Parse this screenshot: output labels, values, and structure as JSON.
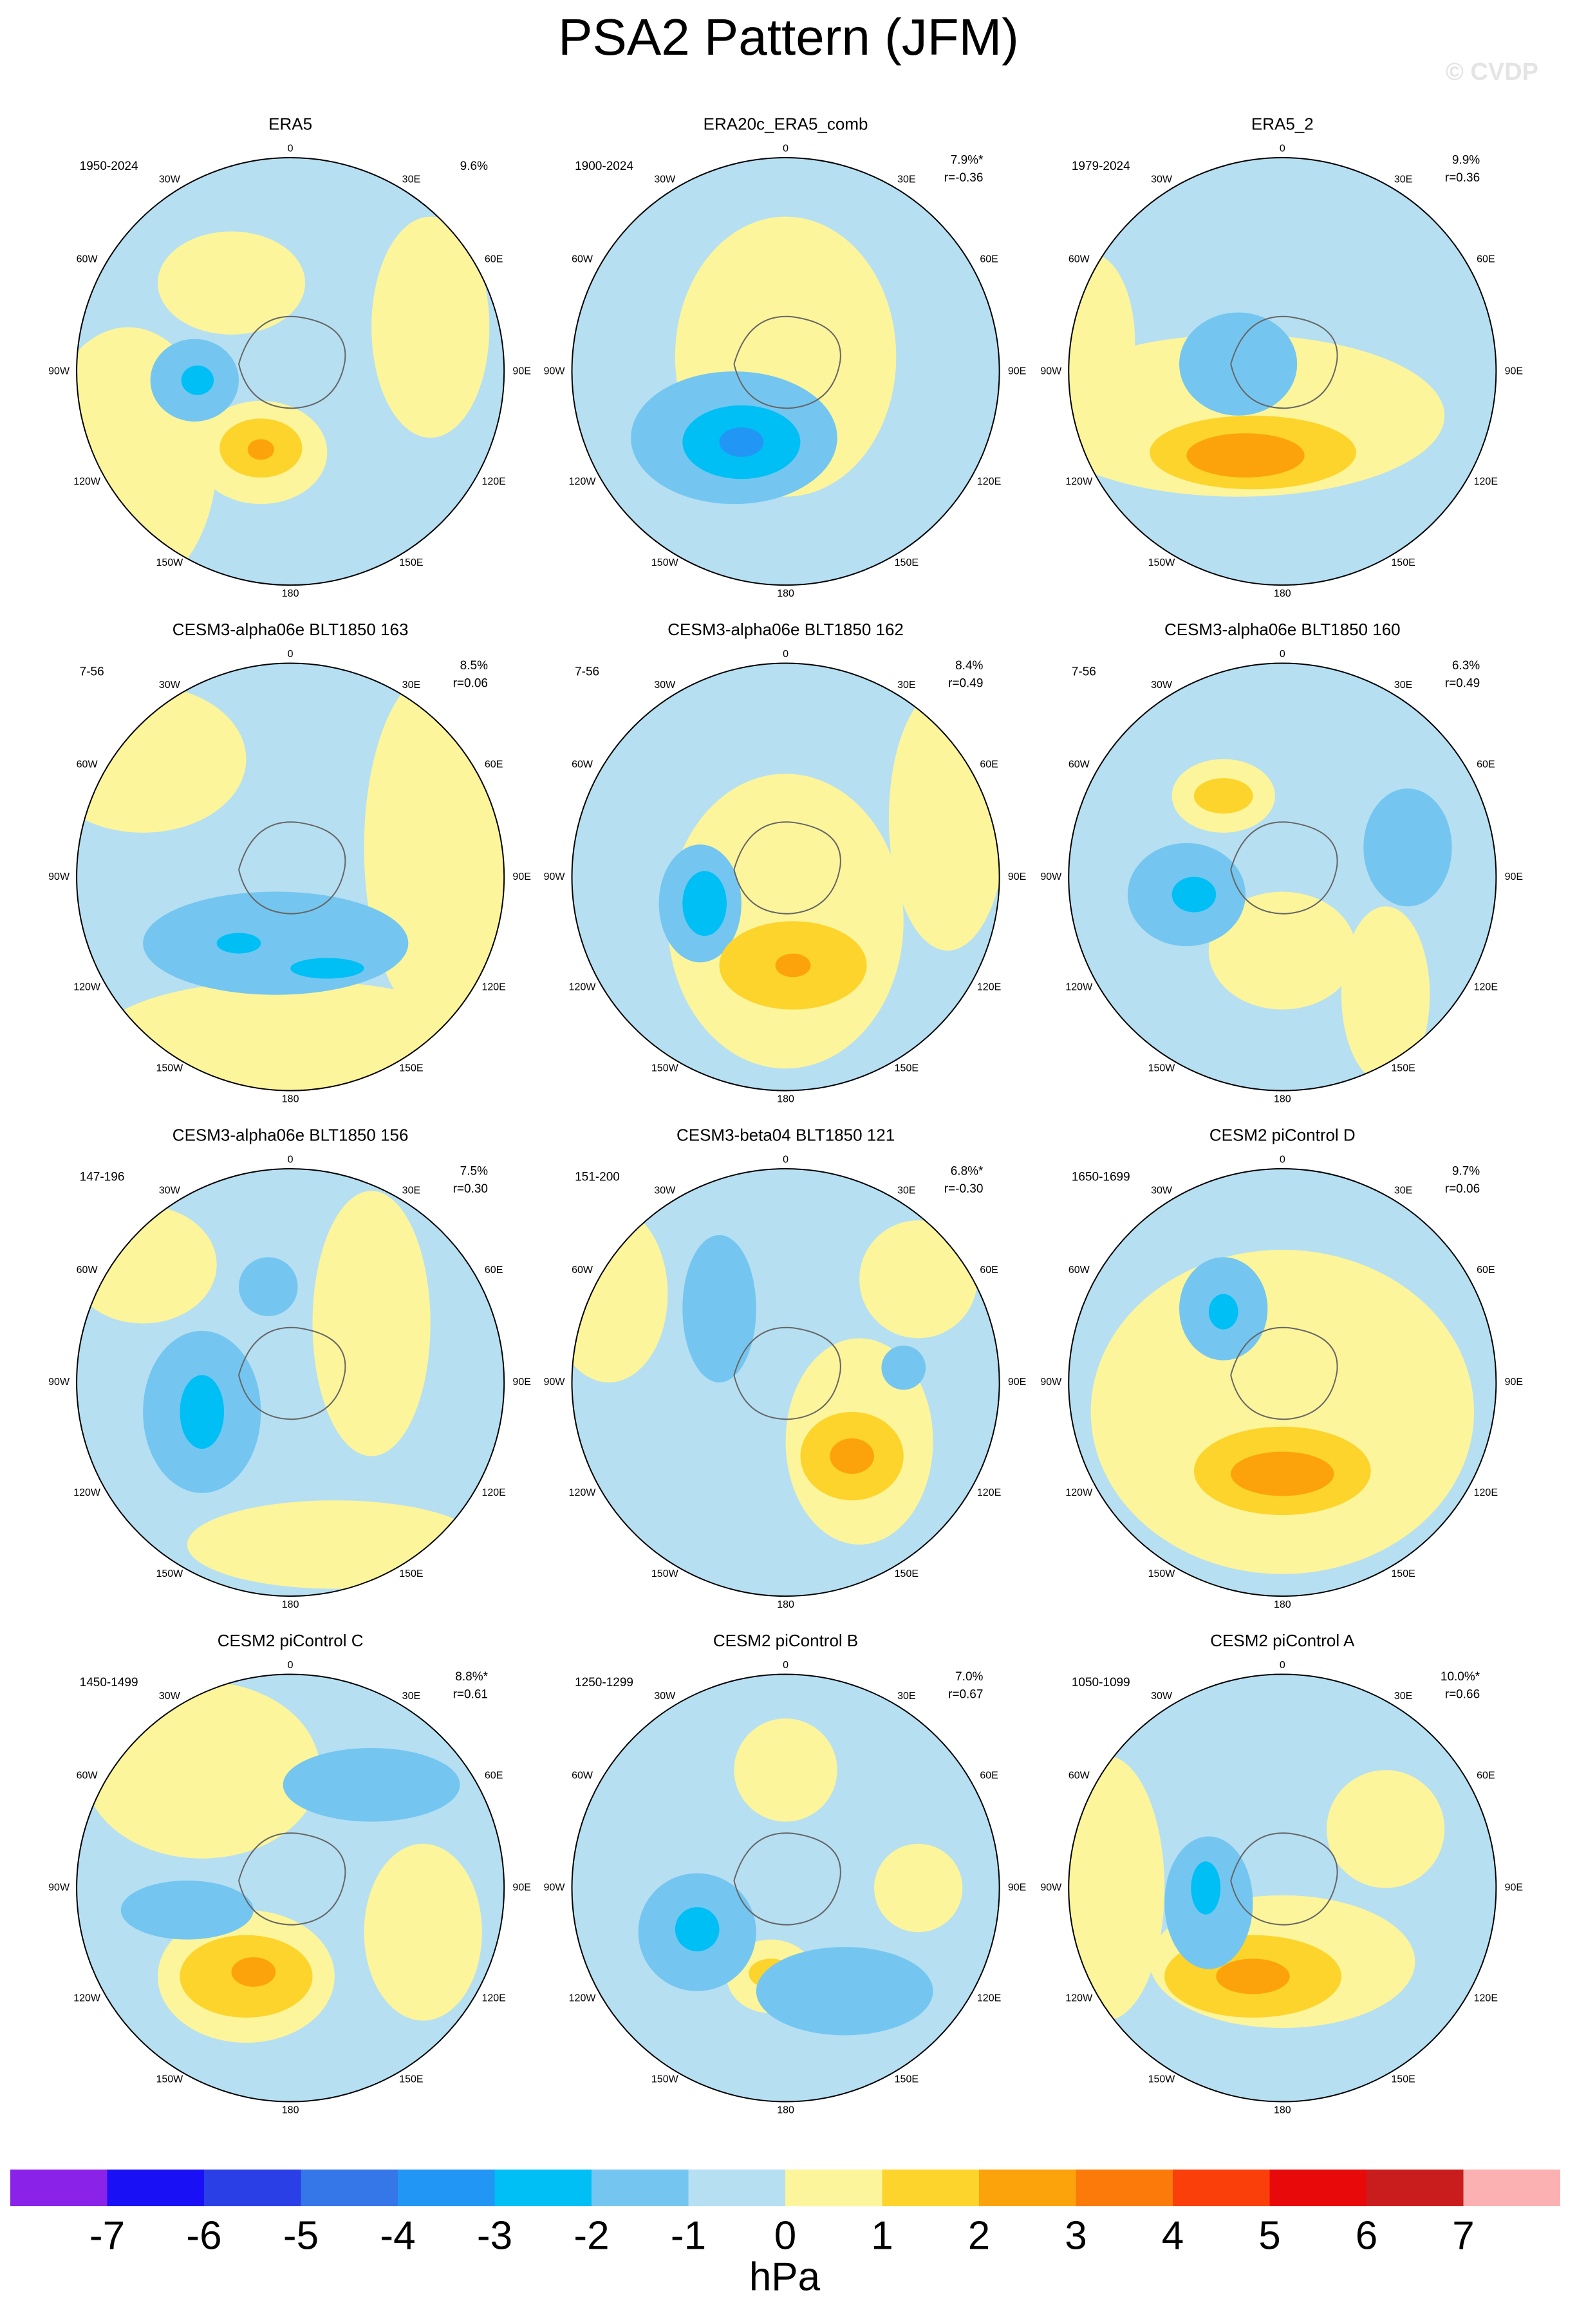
{
  "title": "PSA2 Pattern (JFM)",
  "watermark": "© CVDP",
  "lon_labels": [
    "0",
    "30E",
    "60E",
    "90E",
    "120E",
    "150E",
    "180",
    "150W",
    "120W",
    "90W",
    "60W",
    "30W"
  ],
  "panels": [
    {
      "title": "ERA5",
      "period": "1950-2024",
      "variance": "9.6%"
    },
    {
      "title": "ERA20c_ERA5_comb",
      "period": "1900-2024",
      "variance": "7.9%*",
      "r": "r=-0.36"
    },
    {
      "title": "ERA5_2",
      "period": "1979-2024",
      "variance": "9.9%",
      "r": "r=0.36"
    },
    {
      "title": "CESM3-alpha06e BLT1850 163",
      "period": "7-56",
      "variance": "8.5%",
      "r": "r=0.06"
    },
    {
      "title": "CESM3-alpha06e BLT1850 162",
      "period": "7-56",
      "variance": "8.4%",
      "r": "r=0.49"
    },
    {
      "title": "CESM3-alpha06e BLT1850 160",
      "period": "7-56",
      "variance": "6.3%",
      "r": "r=0.49"
    },
    {
      "title": "CESM3-alpha06e BLT1850 156",
      "period": "147-196",
      "variance": "7.5%",
      "r": "r=0.30"
    },
    {
      "title": "CESM3-beta04 BLT1850 121",
      "period": "151-200",
      "variance": "6.8%*",
      "r": "r=-0.30"
    },
    {
      "title": "CESM2 piControl D",
      "period": "1650-1699",
      "variance": "9.7%",
      "r": "r=0.06"
    },
    {
      "title": "CESM2 piControl C",
      "period": "1450-1499",
      "variance": "8.8%*",
      "r": "r=0.61"
    },
    {
      "title": "CESM2 piControl B",
      "period": "1250-1299",
      "variance": "7.0%",
      "r": "r=0.67"
    },
    {
      "title": "CESM2 piControl A",
      "period": "1050-1099",
      "variance": "10.0%*",
      "r": "r=0.66"
    }
  ],
  "colorbar": {
    "colors": [
      "#8a22e8",
      "#1a10f5",
      "#2a3fe6",
      "#3576e8",
      "#2196f5",
      "#00bff5",
      "#74c6f0",
      "#b6dff2",
      "#fdf59b",
      "#fcd42c",
      "#fca30c",
      "#fb7a09",
      "#fb3f0a",
      "#e80a0a",
      "#c91d1d",
      "#fbb1b1"
    ],
    "ticks": [
      -7,
      -6,
      -5,
      -4,
      -3,
      -2,
      -1,
      0,
      1,
      2,
      3,
      4,
      5,
      6,
      7
    ],
    "label": "hPa"
  }
}
